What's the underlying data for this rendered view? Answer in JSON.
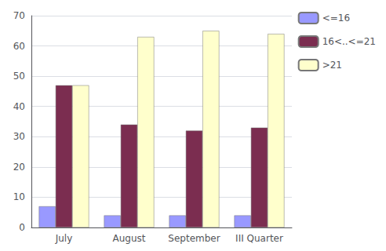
{
  "chart_data": {
    "type": "bar",
    "categories": [
      "July",
      "August",
      "September",
      "III Quarter"
    ],
    "series": [
      {
        "name": "<=16",
        "color": "#9999FF",
        "values": [
          7,
          4,
          4,
          4
        ]
      },
      {
        "name": "16<..<=21",
        "color": "#7B2D50",
        "values": [
          47,
          34,
          32,
          33
        ]
      },
      {
        "name": ">21",
        "color": "#FFFFCC",
        "values": [
          47,
          63,
          65,
          64
        ]
      }
    ],
    "ylim": [
      0,
      70
    ],
    "yticks": [
      0,
      10,
      20,
      30,
      40,
      50,
      60,
      70
    ],
    "grid": true,
    "legend": "upper right"
  }
}
